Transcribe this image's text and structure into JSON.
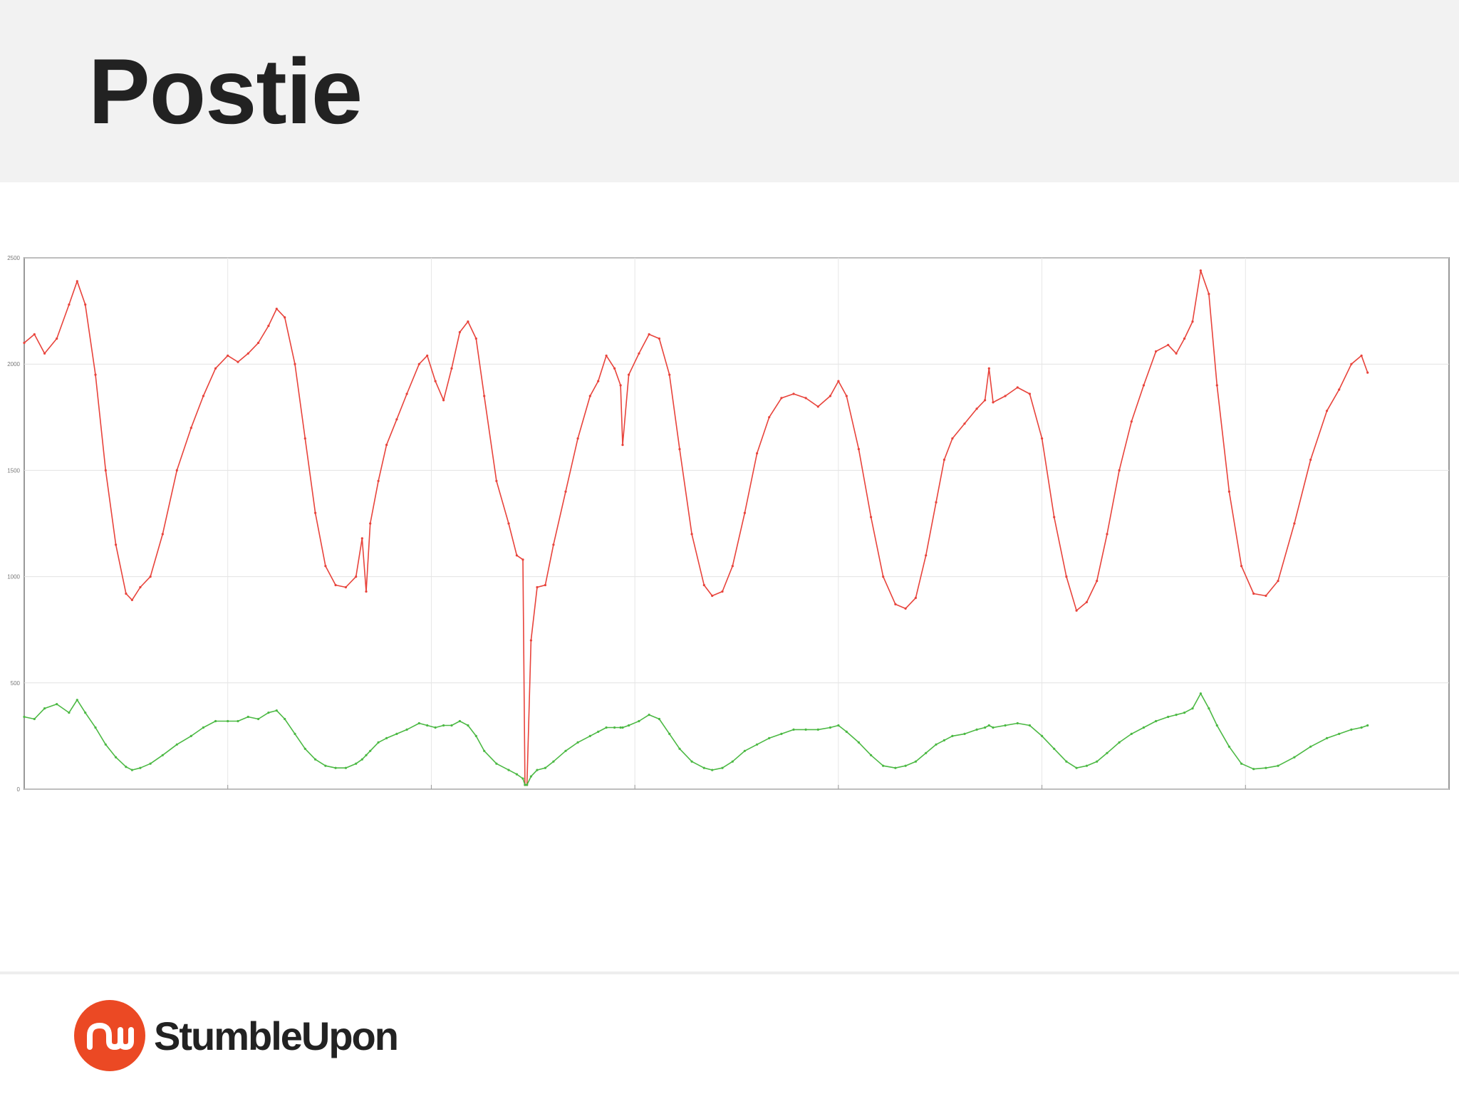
{
  "slide": {
    "title": "Postie",
    "brand": "StumbleUpon"
  },
  "colors": {
    "header_bg": "#f2f2f2",
    "series_red": "#e8433b",
    "series_green": "#4cb944",
    "brand_orange": "#eb4924"
  },
  "icons": {
    "logo": "stumbleupon-logo-icon"
  },
  "chart_data": {
    "type": "line",
    "title": "",
    "xlabel": "",
    "ylabel": "",
    "grid": true,
    "legend": "none",
    "ylim": [
      0,
      2500
    ],
    "xlim": [
      0,
      7
    ],
    "y_ticks": [
      0,
      500,
      1000,
      1500,
      2000,
      2500
    ],
    "series": [
      {
        "color": "#e8433b",
        "points": [
          [
            0.0,
            2100
          ],
          [
            0.05,
            2140
          ],
          [
            0.1,
            2050
          ],
          [
            0.16,
            2120
          ],
          [
            0.22,
            2280
          ],
          [
            0.26,
            2390
          ],
          [
            0.3,
            2280
          ],
          [
            0.35,
            1950
          ],
          [
            0.4,
            1500
          ],
          [
            0.45,
            1150
          ],
          [
            0.5,
            920
          ],
          [
            0.53,
            890
          ],
          [
            0.57,
            950
          ],
          [
            0.62,
            1000
          ],
          [
            0.68,
            1200
          ],
          [
            0.75,
            1500
          ],
          [
            0.82,
            1700
          ],
          [
            0.88,
            1850
          ],
          [
            0.94,
            1980
          ],
          [
            1.0,
            2040
          ],
          [
            1.05,
            2010
          ],
          [
            1.1,
            2050
          ],
          [
            1.15,
            2100
          ],
          [
            1.2,
            2180
          ],
          [
            1.24,
            2260
          ],
          [
            1.28,
            2220
          ],
          [
            1.33,
            2000
          ],
          [
            1.38,
            1650
          ],
          [
            1.43,
            1300
          ],
          [
            1.48,
            1050
          ],
          [
            1.53,
            960
          ],
          [
            1.58,
            950
          ],
          [
            1.63,
            1000
          ],
          [
            1.66,
            1180
          ],
          [
            1.68,
            930
          ],
          [
            1.7,
            1250
          ],
          [
            1.74,
            1450
          ],
          [
            1.78,
            1620
          ],
          [
            1.83,
            1740
          ],
          [
            1.88,
            1860
          ],
          [
            1.94,
            2000
          ],
          [
            1.98,
            2040
          ],
          [
            2.02,
            1920
          ],
          [
            2.06,
            1830
          ],
          [
            2.1,
            1980
          ],
          [
            2.14,
            2150
          ],
          [
            2.18,
            2200
          ],
          [
            2.22,
            2120
          ],
          [
            2.26,
            1850
          ],
          [
            2.32,
            1450
          ],
          [
            2.38,
            1250
          ],
          [
            2.42,
            1100
          ],
          [
            2.45,
            1080
          ],
          [
            2.46,
            20
          ],
          [
            2.47,
            20
          ],
          [
            2.49,
            700
          ],
          [
            2.52,
            950
          ],
          [
            2.56,
            960
          ],
          [
            2.6,
            1150
          ],
          [
            2.66,
            1400
          ],
          [
            2.72,
            1650
          ],
          [
            2.78,
            1850
          ],
          [
            2.82,
            1920
          ],
          [
            2.86,
            2040
          ],
          [
            2.9,
            1980
          ],
          [
            2.93,
            1900
          ],
          [
            2.94,
            1620
          ],
          [
            2.97,
            1950
          ],
          [
            3.02,
            2050
          ],
          [
            3.07,
            2140
          ],
          [
            3.12,
            2120
          ],
          [
            3.17,
            1950
          ],
          [
            3.22,
            1600
          ],
          [
            3.28,
            1200
          ],
          [
            3.34,
            960
          ],
          [
            3.38,
            910
          ],
          [
            3.43,
            930
          ],
          [
            3.48,
            1050
          ],
          [
            3.54,
            1300
          ],
          [
            3.6,
            1580
          ],
          [
            3.66,
            1750
          ],
          [
            3.72,
            1840
          ],
          [
            3.78,
            1860
          ],
          [
            3.84,
            1840
          ],
          [
            3.9,
            1800
          ],
          [
            3.96,
            1850
          ],
          [
            4.0,
            1920
          ],
          [
            4.04,
            1850
          ],
          [
            4.1,
            1600
          ],
          [
            4.16,
            1280
          ],
          [
            4.22,
            1000
          ],
          [
            4.28,
            870
          ],
          [
            4.33,
            850
          ],
          [
            4.38,
            900
          ],
          [
            4.43,
            1100
          ],
          [
            4.48,
            1350
          ],
          [
            4.52,
            1550
          ],
          [
            4.56,
            1650
          ],
          [
            4.62,
            1720
          ],
          [
            4.68,
            1790
          ],
          [
            4.72,
            1830
          ],
          [
            4.74,
            1980
          ],
          [
            4.76,
            1820
          ],
          [
            4.82,
            1850
          ],
          [
            4.88,
            1890
          ],
          [
            4.94,
            1860
          ],
          [
            5.0,
            1650
          ],
          [
            5.06,
            1280
          ],
          [
            5.12,
            1000
          ],
          [
            5.17,
            840
          ],
          [
            5.22,
            880
          ],
          [
            5.27,
            980
          ],
          [
            5.32,
            1200
          ],
          [
            5.38,
            1500
          ],
          [
            5.44,
            1730
          ],
          [
            5.5,
            1900
          ],
          [
            5.56,
            2060
          ],
          [
            5.62,
            2090
          ],
          [
            5.66,
            2050
          ],
          [
            5.7,
            2120
          ],
          [
            5.74,
            2200
          ],
          [
            5.78,
            2440
          ],
          [
            5.82,
            2330
          ],
          [
            5.86,
            1900
          ],
          [
            5.92,
            1400
          ],
          [
            5.98,
            1050
          ],
          [
            6.04,
            920
          ],
          [
            6.1,
            910
          ],
          [
            6.16,
            980
          ],
          [
            6.24,
            1250
          ],
          [
            6.32,
            1550
          ],
          [
            6.4,
            1780
          ],
          [
            6.46,
            1880
          ],
          [
            6.52,
            2000
          ],
          [
            6.57,
            2040
          ],
          [
            6.6,
            1960
          ]
        ]
      },
      {
        "color": "#4cb944",
        "points": [
          [
            0.0,
            340
          ],
          [
            0.05,
            330
          ],
          [
            0.1,
            380
          ],
          [
            0.16,
            400
          ],
          [
            0.22,
            360
          ],
          [
            0.26,
            420
          ],
          [
            0.3,
            360
          ],
          [
            0.35,
            290
          ],
          [
            0.4,
            210
          ],
          [
            0.45,
            150
          ],
          [
            0.5,
            105
          ],
          [
            0.53,
            90
          ],
          [
            0.57,
            100
          ],
          [
            0.62,
            120
          ],
          [
            0.68,
            160
          ],
          [
            0.75,
            210
          ],
          [
            0.82,
            250
          ],
          [
            0.88,
            290
          ],
          [
            0.94,
            320
          ],
          [
            1.0,
            320
          ],
          [
            1.05,
            320
          ],
          [
            1.1,
            340
          ],
          [
            1.15,
            330
          ],
          [
            1.2,
            360
          ],
          [
            1.24,
            370
          ],
          [
            1.28,
            330
          ],
          [
            1.33,
            260
          ],
          [
            1.38,
            190
          ],
          [
            1.43,
            140
          ],
          [
            1.48,
            110
          ],
          [
            1.53,
            100
          ],
          [
            1.58,
            100
          ],
          [
            1.63,
            120
          ],
          [
            1.66,
            140
          ],
          [
            1.68,
            160
          ],
          [
            1.7,
            180
          ],
          [
            1.74,
            220
          ],
          [
            1.78,
            240
          ],
          [
            1.83,
            260
          ],
          [
            1.88,
            280
          ],
          [
            1.94,
            310
          ],
          [
            1.98,
            300
          ],
          [
            2.02,
            290
          ],
          [
            2.06,
            300
          ],
          [
            2.1,
            300
          ],
          [
            2.14,
            320
          ],
          [
            2.18,
            300
          ],
          [
            2.22,
            250
          ],
          [
            2.26,
            180
          ],
          [
            2.32,
            120
          ],
          [
            2.38,
            90
          ],
          [
            2.42,
            70
          ],
          [
            2.45,
            50
          ],
          [
            2.46,
            20
          ],
          [
            2.47,
            20
          ],
          [
            2.49,
            60
          ],
          [
            2.52,
            90
          ],
          [
            2.56,
            100
          ],
          [
            2.6,
            130
          ],
          [
            2.66,
            180
          ],
          [
            2.72,
            220
          ],
          [
            2.78,
            250
          ],
          [
            2.82,
            270
          ],
          [
            2.86,
            290
          ],
          [
            2.9,
            290
          ],
          [
            2.93,
            290
          ],
          [
            2.94,
            290
          ],
          [
            2.97,
            300
          ],
          [
            3.02,
            320
          ],
          [
            3.07,
            350
          ],
          [
            3.12,
            330
          ],
          [
            3.17,
            260
          ],
          [
            3.22,
            190
          ],
          [
            3.28,
            130
          ],
          [
            3.34,
            100
          ],
          [
            3.38,
            90
          ],
          [
            3.43,
            100
          ],
          [
            3.48,
            130
          ],
          [
            3.54,
            180
          ],
          [
            3.6,
            210
          ],
          [
            3.66,
            240
          ],
          [
            3.72,
            260
          ],
          [
            3.78,
            280
          ],
          [
            3.84,
            280
          ],
          [
            3.9,
            280
          ],
          [
            3.96,
            290
          ],
          [
            4.0,
            300
          ],
          [
            4.04,
            270
          ],
          [
            4.1,
            220
          ],
          [
            4.16,
            160
          ],
          [
            4.22,
            110
          ],
          [
            4.28,
            100
          ],
          [
            4.33,
            110
          ],
          [
            4.38,
            130
          ],
          [
            4.43,
            170
          ],
          [
            4.48,
            210
          ],
          [
            4.52,
            230
          ],
          [
            4.56,
            250
          ],
          [
            4.62,
            260
          ],
          [
            4.68,
            280
          ],
          [
            4.72,
            290
          ],
          [
            4.74,
            300
          ],
          [
            4.76,
            290
          ],
          [
            4.82,
            300
          ],
          [
            4.88,
            310
          ],
          [
            4.94,
            300
          ],
          [
            5.0,
            250
          ],
          [
            5.06,
            190
          ],
          [
            5.12,
            130
          ],
          [
            5.17,
            100
          ],
          [
            5.22,
            110
          ],
          [
            5.27,
            130
          ],
          [
            5.32,
            170
          ],
          [
            5.38,
            220
          ],
          [
            5.44,
            260
          ],
          [
            5.5,
            290
          ],
          [
            5.56,
            320
          ],
          [
            5.62,
            340
          ],
          [
            5.66,
            350
          ],
          [
            5.7,
            360
          ],
          [
            5.74,
            380
          ],
          [
            5.78,
            450
          ],
          [
            5.82,
            380
          ],
          [
            5.86,
            300
          ],
          [
            5.92,
            200
          ],
          [
            5.98,
            120
          ],
          [
            6.04,
            95
          ],
          [
            6.1,
            100
          ],
          [
            6.16,
            110
          ],
          [
            6.24,
            150
          ],
          [
            6.32,
            200
          ],
          [
            6.4,
            240
          ],
          [
            6.46,
            260
          ],
          [
            6.52,
            280
          ],
          [
            6.57,
            290
          ],
          [
            6.6,
            300
          ]
        ]
      }
    ]
  }
}
